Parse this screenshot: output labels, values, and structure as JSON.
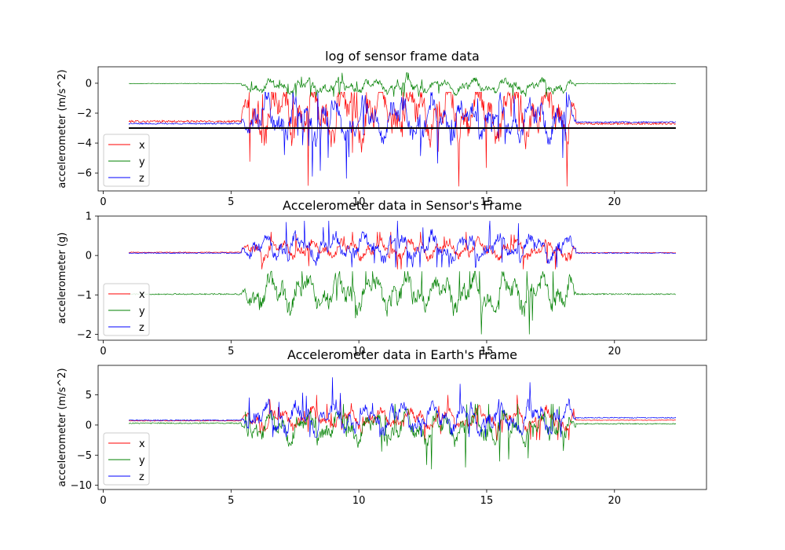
{
  "chart_data": [
    {
      "type": "line",
      "title": "log of sensor frame data",
      "xlabel": "",
      "ylabel": "accelerometer (m/s^2)",
      "xlim": [
        -0.2,
        23.6
      ],
      "ylim": [
        -7.2,
        1.1
      ],
      "xticks": [
        0,
        5,
        10,
        15,
        20
      ],
      "yticks": [
        0,
        -2,
        -4,
        -6
      ],
      "legend": {
        "placement": "lower-left",
        "entries": [
          "x",
          "y",
          "z"
        ]
      },
      "reference_line": {
        "y": -3.0,
        "x_range": [
          1.0,
          22.4
        ],
        "color": "#000000"
      },
      "x_range": [
        1.0,
        22.4
      ],
      "active_range": [
        5.8,
        18.2
      ],
      "series": [
        {
          "name": "x",
          "color": "#ff0000",
          "baseline": -2.55,
          "active_mean": -1.9,
          "active_amp": 2.3,
          "min": -6.9,
          "max": -0.6,
          "end_value": -2.7
        },
        {
          "name": "y",
          "color": "#008000",
          "baseline": -0.02,
          "active_mean": -0.2,
          "active_amp": 0.55,
          "min": -0.9,
          "max": 0.7,
          "end_value": -0.02
        },
        {
          "name": "z",
          "color": "#0000ff",
          "baseline": -2.7,
          "active_mean": -2.4,
          "active_amp": 1.6,
          "min": -7.0,
          "max": -0.6,
          "end_value": -2.6
        }
      ]
    },
    {
      "type": "line",
      "title": "Accelerometer data in Sensor's Frame",
      "xlabel": "",
      "ylabel": "accelerometer (g)",
      "xlim": [
        -0.2,
        23.6
      ],
      "ylim": [
        -2.15,
        1.0
      ],
      "xticks": [
        0,
        5,
        10,
        15,
        20
      ],
      "yticks": [
        1,
        0,
        -1,
        -2
      ],
      "legend": {
        "placement": "lower-left",
        "entries": [
          "x",
          "y",
          "z"
        ]
      },
      "x_range": [
        1.0,
        22.4
      ],
      "active_range": [
        5.8,
        18.2
      ],
      "series": [
        {
          "name": "x",
          "color": "#ff0000",
          "baseline": 0.08,
          "active_mean": 0.15,
          "active_amp": 0.28,
          "min": -0.35,
          "max": 0.6,
          "end_value": 0.07
        },
        {
          "name": "y",
          "color": "#008000",
          "baseline": -0.98,
          "active_mean": -0.95,
          "active_amp": 0.55,
          "min": -2.0,
          "max": -0.4,
          "end_value": -0.98
        },
        {
          "name": "z",
          "color": "#0000ff",
          "baseline": 0.06,
          "active_mean": 0.2,
          "active_amp": 0.4,
          "min": -0.3,
          "max": 0.88,
          "end_value": 0.06
        }
      ]
    },
    {
      "type": "line",
      "title": "Accelerometer data in Earth's Frame",
      "xlabel": "",
      "ylabel": "accelerometer (m/s^2)",
      "xlim": [
        -0.2,
        23.6
      ],
      "ylim": [
        -10.7,
        9.9
      ],
      "xticks": [
        0,
        5,
        10,
        15,
        20
      ],
      "yticks": [
        5,
        0,
        -5,
        -10
      ],
      "legend": {
        "placement": "lower-left",
        "entries": [
          "x",
          "y",
          "z"
        ]
      },
      "x_range": [
        1.0,
        22.4
      ],
      "active_range": [
        5.8,
        18.2
      ],
      "series": [
        {
          "name": "x",
          "color": "#ff0000",
          "baseline": 0.7,
          "active_mean": 1.0,
          "active_amp": 2.0,
          "min": -2.5,
          "max": 5.0,
          "end_value": 0.8
        },
        {
          "name": "y",
          "color": "#008000",
          "baseline": 0.3,
          "active_mean": -0.5,
          "active_amp": 3.0,
          "min": -9.8,
          "max": 3.5,
          "end_value": 0.2
        },
        {
          "name": "z",
          "color": "#0000ff",
          "baseline": 0.8,
          "active_mean": 1.2,
          "active_amp": 3.0,
          "min": -2.0,
          "max": 8.8,
          "end_value": 1.2
        }
      ]
    }
  ]
}
